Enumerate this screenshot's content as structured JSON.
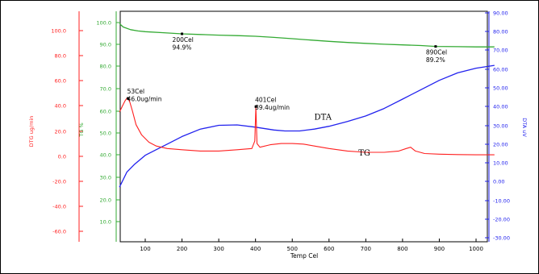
{
  "chart_data": {
    "type": "line",
    "xlabel": "Temp Cel",
    "xlim": [
      30,
      1050
    ],
    "xticks": [
      100,
      200,
      300,
      400,
      500,
      600,
      700,
      800,
      900,
      1000
    ],
    "axes": {
      "dtg": {
        "label": "DTG ug/min",
        "color": "#ff2020",
        "ylim": [
          -70,
          125
        ],
        "ticks": [
          "100.0",
          "80.0",
          "60.0",
          "40.0",
          "20.0",
          "0.0",
          "-20.0",
          "-40.0",
          "-60.0"
        ]
      },
      "tg": {
        "label": "TG %",
        "color": "#33aa33",
        "ylim": [
          0,
          102
        ],
        "ticks": [
          "100.0",
          "90.0",
          "80.0",
          "70.0",
          "60.0",
          "50.0",
          "40.0",
          "30.0",
          "20.0",
          "10.0"
        ]
      },
      "dta": {
        "label": "DTA uV",
        "color": "#2222ee",
        "ylim": [
          -32,
          90
        ],
        "ticks": [
          "90.00",
          "80.00",
          "70.00",
          "60.00",
          "50.00",
          "40.00",
          "30.00",
          "20.00",
          "10.00",
          "0.00",
          "-10.00",
          "-20.00",
          "-30.00"
        ]
      }
    },
    "series": [
      {
        "key": "tg",
        "axis": "tg",
        "color": "#33aa33",
        "x": [
          30,
          40,
          60,
          80,
          100,
          150,
          200,
          250,
          300,
          350,
          400,
          450,
          500,
          550,
          600,
          650,
          700,
          750,
          800,
          850,
          890,
          950,
          1000,
          1050
        ],
        "values": [
          99.5,
          98.0,
          96.8,
          96.2,
          95.9,
          95.4,
          94.9,
          94.6,
          94.3,
          94.1,
          93.8,
          93.3,
          92.7,
          92.1,
          91.5,
          91.0,
          90.6,
          90.2,
          89.9,
          89.6,
          89.2,
          89.1,
          89.0,
          89.0
        ]
      },
      {
        "key": "dta",
        "axis": "dta",
        "color": "#2222ee",
        "x": [
          30,
          50,
          70,
          100,
          130,
          160,
          200,
          250,
          300,
          350,
          400,
          450,
          480,
          520,
          560,
          600,
          650,
          700,
          750,
          800,
          850,
          900,
          950,
          1000,
          1050
        ],
        "values": [
          -3,
          5,
          9,
          14,
          17,
          20,
          24,
          28,
          30,
          30.2,
          29,
          27.5,
          27,
          27,
          28,
          29.5,
          32,
          35,
          39,
          44,
          49,
          54,
          58,
          60.5,
          62
        ]
      },
      {
        "key": "dtg",
        "axis": "dtg",
        "color": "#ff2020",
        "x": [
          30,
          38,
          45,
          50,
          53,
          58,
          65,
          75,
          90,
          110,
          130,
          160,
          200,
          250,
          300,
          350,
          390,
          398,
          401,
          404,
          412,
          440,
          470,
          500,
          530,
          560,
          600,
          650,
          700,
          750,
          790,
          810,
          822,
          835,
          860,
          900,
          950,
          1000,
          1050
        ],
        "values": [
          35,
          40,
          44,
          46,
          46,
          43,
          36,
          25,
          17,
          11,
          8,
          6,
          5,
          4,
          4,
          5,
          6,
          12,
          39.4,
          10,
          7,
          9,
          10,
          10,
          9.5,
          8,
          6,
          4,
          3,
          3,
          4,
          6,
          7,
          4,
          2,
          1.5,
          1.2,
          1,
          1
        ]
      }
    ],
    "annotations": [
      {
        "lines": [
          "200Cel",
          "94.9%"
        ],
        "x": 200,
        "y": 94.9,
        "axis": "tg",
        "color": "#000000"
      },
      {
        "lines": [
          "890Cel",
          "89.2%"
        ],
        "x": 890,
        "y": 89.2,
        "axis": "tg",
        "color": "#000000"
      },
      {
        "lines": [
          "53Cel",
          "46.0ug/min"
        ],
        "x": 53,
        "y": 46.0,
        "axis": "dtg",
        "color": "#000000"
      },
      {
        "lines": [
          "401Cel",
          "39.4ug/min"
        ],
        "x": 401,
        "y": 39.4,
        "axis": "dtg",
        "color": "#000000"
      }
    ],
    "curve_labels": [
      {
        "text": "DTA",
        "x": 560,
        "y": 33,
        "axis": "dta"
      },
      {
        "text": "TG",
        "x": 680,
        "y": 0.5,
        "axis": "dtg"
      }
    ]
  }
}
